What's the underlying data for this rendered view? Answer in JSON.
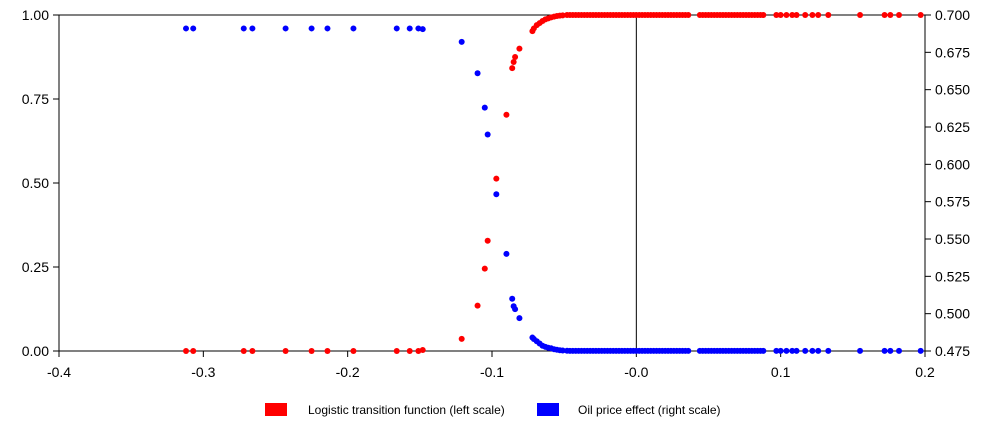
{
  "chart_data": {
    "type": "scatter",
    "xlim": [
      -0.4,
      0.2
    ],
    "ylim_left": [
      0,
      1
    ],
    "ylim_right": [
      0.475,
      0.7
    ],
    "x_ticks": [
      "-0.4",
      "-0.3",
      "-0.2",
      "-0.1",
      "-0.0",
      "0.1",
      "0.2"
    ],
    "x_tick_values": [
      -0.4,
      -0.3,
      -0.2,
      -0.1,
      0.0,
      0.1,
      0.2
    ],
    "y_left_ticks": [
      "0.00",
      "0.25",
      "0.50",
      "0.75",
      "1.00"
    ],
    "y_left_tick_values": [
      0,
      0.25,
      0.5,
      0.75,
      1.0
    ],
    "y_right_ticks": [
      "0.475",
      "0.500",
      "0.525",
      "0.550",
      "0.575",
      "0.600",
      "0.625",
      "0.650",
      "0.675",
      "0.700"
    ],
    "y_right_tick_values": [
      0.475,
      0.5,
      0.525,
      0.55,
      0.575,
      0.6,
      0.625,
      0.65,
      0.675,
      0.7
    ],
    "vertical_line_x": 0,
    "legend_position": "bottom-center",
    "series": [
      {
        "name": "Logistic transition function (left scale)",
        "axis": "left",
        "color": "#ff0000",
        "points": [
          [
            -0.312,
            0.0
          ],
          [
            -0.307,
            0.0
          ],
          [
            -0.272,
            0.0
          ],
          [
            -0.266,
            0.0
          ],
          [
            -0.243,
            0.0
          ],
          [
            -0.225,
            0.0
          ],
          [
            -0.214,
            0.0
          ],
          [
            -0.196,
            0.0
          ],
          [
            -0.166,
            0.0
          ],
          [
            -0.157,
            0.0
          ],
          [
            -0.151,
            0.0
          ],
          [
            -0.148,
            0.003
          ],
          [
            -0.121,
            0.036
          ],
          [
            -0.11,
            0.135
          ],
          [
            -0.105,
            0.245
          ],
          [
            -0.103,
            0.328
          ],
          [
            -0.097,
            0.513
          ],
          [
            -0.09,
            0.703
          ],
          [
            -0.086,
            0.842
          ],
          [
            -0.085,
            0.86
          ],
          [
            -0.084,
            0.875
          ],
          [
            -0.081,
            0.9
          ],
          [
            -0.072,
            0.952
          ],
          [
            -0.071,
            0.96
          ],
          [
            -0.069,
            0.97
          ],
          [
            -0.067,
            0.976
          ],
          [
            -0.065,
            0.982
          ],
          [
            -0.063,
            0.987
          ],
          [
            -0.061,
            0.99
          ],
          [
            -0.059,
            0.993
          ],
          [
            -0.057,
            0.995
          ],
          [
            -0.055,
            0.997
          ],
          [
            -0.053,
            0.998
          ],
          [
            -0.051,
            0.999
          ],
          [
            -0.048,
            1.0
          ],
          [
            -0.046,
            1.0
          ],
          [
            -0.044,
            1.0
          ],
          [
            -0.042,
            1.0
          ],
          [
            -0.04,
            1.0
          ],
          [
            -0.038,
            1.0
          ],
          [
            -0.036,
            1.0
          ],
          [
            -0.034,
            1.0
          ],
          [
            -0.032,
            1.0
          ],
          [
            -0.03,
            1.0
          ],
          [
            -0.028,
            1.0
          ],
          [
            -0.026,
            1.0
          ],
          [
            -0.024,
            1.0
          ],
          [
            -0.022,
            1.0
          ],
          [
            -0.02,
            1.0
          ],
          [
            -0.018,
            1.0
          ],
          [
            -0.016,
            1.0
          ],
          [
            -0.014,
            1.0
          ],
          [
            -0.012,
            1.0
          ],
          [
            -0.01,
            1.0
          ],
          [
            -0.008,
            1.0
          ],
          [
            -0.006,
            1.0
          ],
          [
            -0.004,
            1.0
          ],
          [
            -0.002,
            1.0
          ],
          [
            0.0,
            1.0
          ],
          [
            0.002,
            1.0
          ],
          [
            0.004,
            1.0
          ],
          [
            0.006,
            1.0
          ],
          [
            0.008,
            1.0
          ],
          [
            0.01,
            1.0
          ],
          [
            0.012,
            1.0
          ],
          [
            0.014,
            1.0
          ],
          [
            0.016,
            1.0
          ],
          [
            0.018,
            1.0
          ],
          [
            0.02,
            1.0
          ],
          [
            0.022,
            1.0
          ],
          [
            0.024,
            1.0
          ],
          [
            0.026,
            1.0
          ],
          [
            0.028,
            1.0
          ],
          [
            0.03,
            1.0
          ],
          [
            0.032,
            1.0
          ],
          [
            0.034,
            1.0
          ],
          [
            0.036,
            1.0
          ],
          [
            0.044,
            1.0
          ],
          [
            0.046,
            1.0
          ],
          [
            0.048,
            1.0
          ],
          [
            0.05,
            1.0
          ],
          [
            0.052,
            1.0
          ],
          [
            0.054,
            1.0
          ],
          [
            0.056,
            1.0
          ],
          [
            0.058,
            1.0
          ],
          [
            0.06,
            1.0
          ],
          [
            0.062,
            1.0
          ],
          [
            0.064,
            1.0
          ],
          [
            0.066,
            1.0
          ],
          [
            0.068,
            1.0
          ],
          [
            0.07,
            1.0
          ],
          [
            0.072,
            1.0
          ],
          [
            0.074,
            1.0
          ],
          [
            0.076,
            1.0
          ],
          [
            0.078,
            1.0
          ],
          [
            0.08,
            1.0
          ],
          [
            0.082,
            1.0
          ],
          [
            0.084,
            1.0
          ],
          [
            0.086,
            1.0
          ],
          [
            0.088,
            1.0
          ],
          [
            0.097,
            1.0
          ],
          [
            0.1,
            1.0
          ],
          [
            0.104,
            1.0
          ],
          [
            0.108,
            1.0
          ],
          [
            0.111,
            1.0
          ],
          [
            0.117,
            1.0
          ],
          [
            0.122,
            1.0
          ],
          [
            0.126,
            1.0
          ],
          [
            0.133,
            1.0
          ],
          [
            0.155,
            1.0
          ],
          [
            0.172,
            1.0
          ],
          [
            0.176,
            1.0
          ],
          [
            0.182,
            1.0
          ],
          [
            0.197,
            1.0
          ]
        ]
      },
      {
        "name": "Oil price effect (right scale)",
        "axis": "right",
        "color": "#0000ff",
        "points": [
          [
            -0.312,
            0.691
          ],
          [
            -0.307,
            0.691
          ],
          [
            -0.272,
            0.691
          ],
          [
            -0.266,
            0.691
          ],
          [
            -0.243,
            0.691
          ],
          [
            -0.225,
            0.691
          ],
          [
            -0.214,
            0.691
          ],
          [
            -0.196,
            0.691
          ],
          [
            -0.166,
            0.691
          ],
          [
            -0.157,
            0.691
          ],
          [
            -0.151,
            0.691
          ],
          [
            -0.148,
            0.6905
          ],
          [
            -0.121,
            0.682
          ],
          [
            -0.11,
            0.661
          ],
          [
            -0.105,
            0.638
          ],
          [
            -0.103,
            0.62
          ],
          [
            -0.097,
            0.58
          ],
          [
            -0.09,
            0.54
          ],
          [
            -0.086,
            0.51
          ],
          [
            -0.085,
            0.505
          ],
          [
            -0.084,
            0.503
          ],
          [
            -0.081,
            0.497
          ],
          [
            -0.072,
            0.484
          ],
          [
            -0.071,
            0.483
          ],
          [
            -0.069,
            0.4815
          ],
          [
            -0.067,
            0.48
          ],
          [
            -0.065,
            0.4785
          ],
          [
            -0.063,
            0.4778
          ],
          [
            -0.061,
            0.4772
          ],
          [
            -0.059,
            0.4768
          ],
          [
            -0.057,
            0.4762
          ],
          [
            -0.055,
            0.4758
          ],
          [
            -0.053,
            0.4755
          ],
          [
            -0.051,
            0.4753
          ],
          [
            -0.048,
            0.4752
          ],
          [
            -0.046,
            0.4751
          ],
          [
            -0.044,
            0.4751
          ],
          [
            -0.042,
            0.4751
          ],
          [
            -0.04,
            0.4751
          ],
          [
            -0.038,
            0.4751
          ],
          [
            -0.036,
            0.4751
          ],
          [
            -0.034,
            0.4751
          ],
          [
            -0.032,
            0.4751
          ],
          [
            -0.03,
            0.4751
          ],
          [
            -0.028,
            0.4751
          ],
          [
            -0.026,
            0.4751
          ],
          [
            -0.024,
            0.4751
          ],
          [
            -0.022,
            0.4751
          ],
          [
            -0.02,
            0.4751
          ],
          [
            -0.018,
            0.4751
          ],
          [
            -0.016,
            0.4751
          ],
          [
            -0.014,
            0.4751
          ],
          [
            -0.012,
            0.4751
          ],
          [
            -0.01,
            0.4751
          ],
          [
            -0.008,
            0.4751
          ],
          [
            -0.006,
            0.4751
          ],
          [
            -0.004,
            0.4751
          ],
          [
            -0.002,
            0.4751
          ],
          [
            0.0,
            0.4751
          ],
          [
            0.002,
            0.4751
          ],
          [
            0.004,
            0.4751
          ],
          [
            0.006,
            0.4751
          ],
          [
            0.008,
            0.4751
          ],
          [
            0.01,
            0.4751
          ],
          [
            0.012,
            0.4751
          ],
          [
            0.014,
            0.4751
          ],
          [
            0.016,
            0.4751
          ],
          [
            0.018,
            0.4751
          ],
          [
            0.02,
            0.4751
          ],
          [
            0.022,
            0.4751
          ],
          [
            0.024,
            0.4751
          ],
          [
            0.026,
            0.4751
          ],
          [
            0.028,
            0.4751
          ],
          [
            0.03,
            0.4751
          ],
          [
            0.032,
            0.4751
          ],
          [
            0.034,
            0.4751
          ],
          [
            0.036,
            0.4751
          ],
          [
            0.044,
            0.4751
          ],
          [
            0.046,
            0.4751
          ],
          [
            0.048,
            0.4751
          ],
          [
            0.05,
            0.4751
          ],
          [
            0.052,
            0.4751
          ],
          [
            0.054,
            0.4751
          ],
          [
            0.056,
            0.4751
          ],
          [
            0.058,
            0.4751
          ],
          [
            0.06,
            0.4751
          ],
          [
            0.062,
            0.4751
          ],
          [
            0.064,
            0.4751
          ],
          [
            0.066,
            0.4751
          ],
          [
            0.068,
            0.4751
          ],
          [
            0.07,
            0.4751
          ],
          [
            0.072,
            0.4751
          ],
          [
            0.074,
            0.4751
          ],
          [
            0.076,
            0.4751
          ],
          [
            0.078,
            0.4751
          ],
          [
            0.08,
            0.4751
          ],
          [
            0.082,
            0.4751
          ],
          [
            0.084,
            0.4751
          ],
          [
            0.086,
            0.4751
          ],
          [
            0.088,
            0.4751
          ],
          [
            0.097,
            0.4751
          ],
          [
            0.1,
            0.4751
          ],
          [
            0.104,
            0.4751
          ],
          [
            0.108,
            0.4751
          ],
          [
            0.111,
            0.4751
          ],
          [
            0.117,
            0.4751
          ],
          [
            0.122,
            0.4751
          ],
          [
            0.126,
            0.4751
          ],
          [
            0.133,
            0.4751
          ],
          [
            0.155,
            0.4751
          ],
          [
            0.172,
            0.4751
          ],
          [
            0.176,
            0.4751
          ],
          [
            0.182,
            0.4751
          ],
          [
            0.197,
            0.4751
          ]
        ]
      }
    ]
  }
}
